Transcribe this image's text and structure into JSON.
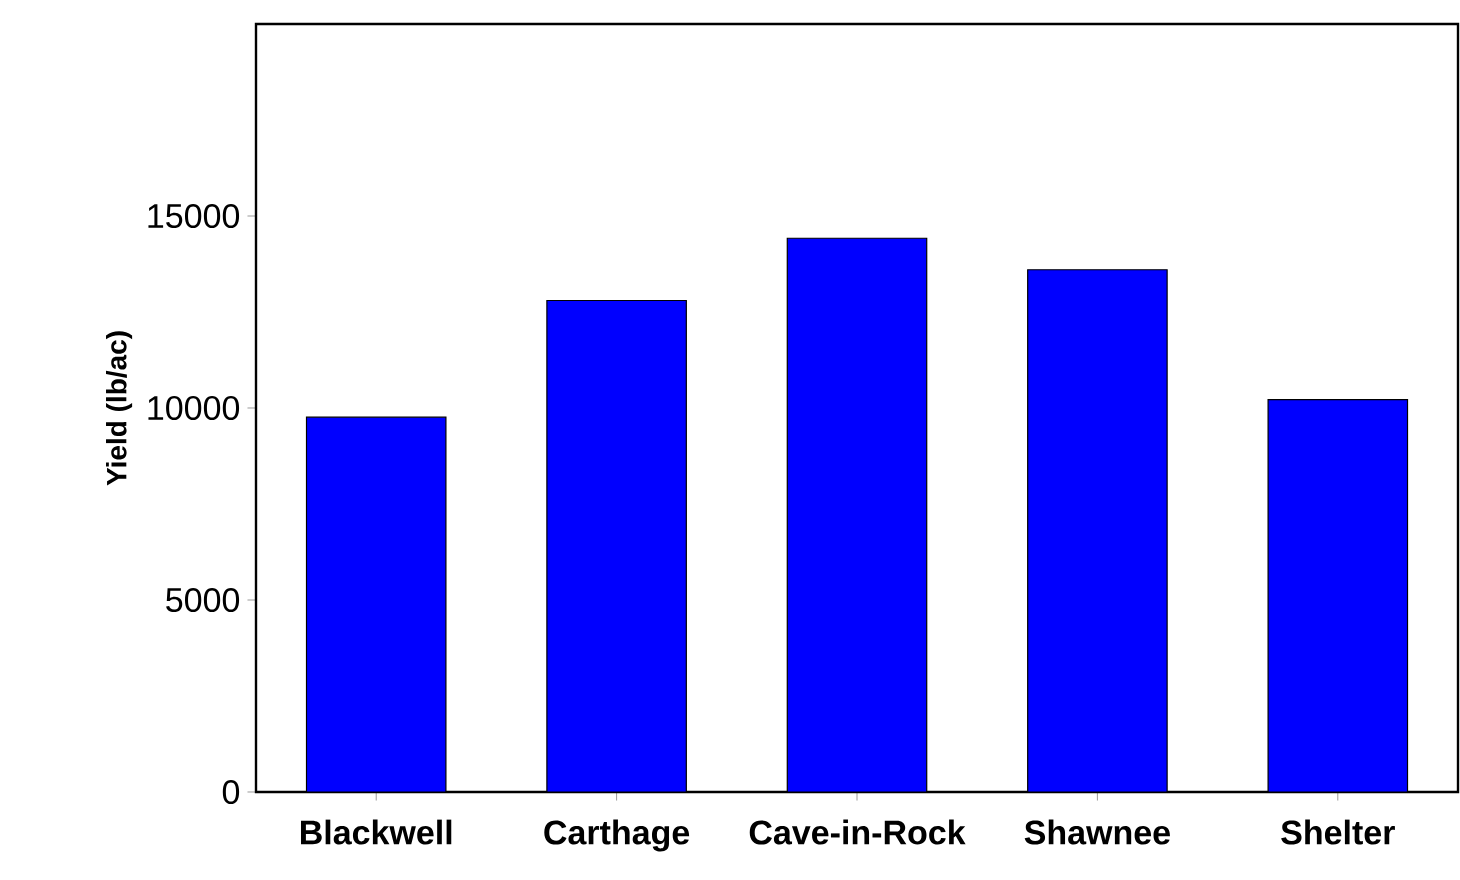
{
  "chart_data": {
    "type": "bar",
    "ylabel": "Yield (lb/ac)",
    "categories": [
      "Blackwell",
      "Carthage",
      "Cave-in-Rock",
      "Shawnee",
      "Shelter"
    ],
    "values": [
      9760,
      12800,
      14420,
      13600,
      10220
    ],
    "color": "#0000ff",
    "ylim": [
      0,
      20000
    ],
    "yticks": [
      0,
      5000,
      10000,
      15000
    ],
    "grid": false
  }
}
